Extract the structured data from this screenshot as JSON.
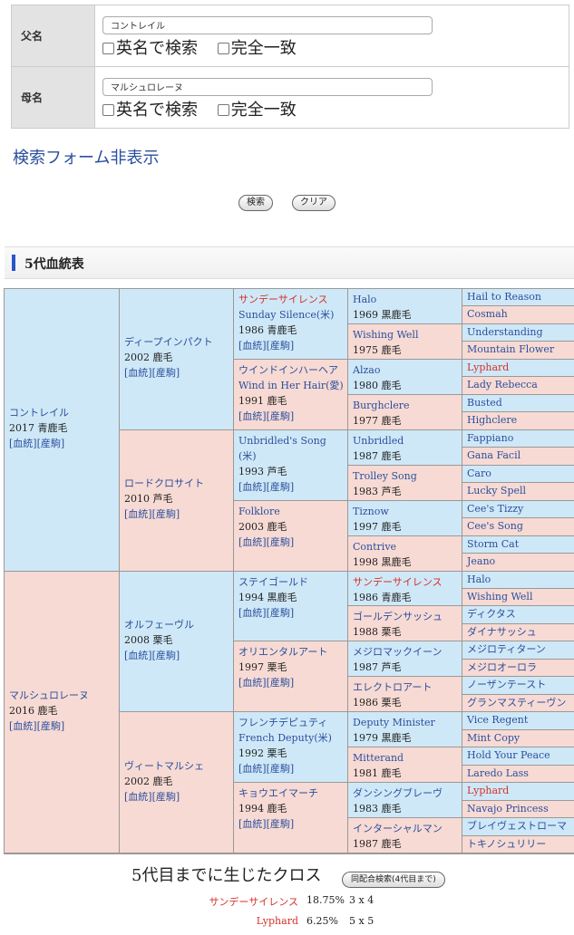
{
  "form": {
    "sire_label": "父名",
    "sire_value": "コントレイル",
    "dam_label": "母名",
    "dam_value": "マルシュロレーヌ",
    "opt_english": "英名で検索",
    "opt_exact": "完全一致",
    "toggle_link": "検索フォーム非表示",
    "search_button": "検索",
    "clear_button": "クリア"
  },
  "section_title": "5代血統表",
  "links": {
    "pedigree": "[血統]",
    "foals": "[産駒]"
  },
  "pedigree": {
    "g1": [
      {
        "name": "コントレイル",
        "info": "2017 青鹿毛"
      },
      {
        "name": "マルシュロレーヌ",
        "info": "2016 鹿毛"
      }
    ],
    "g2": [
      {
        "name": "ディープインパクト",
        "info": "2002 鹿毛"
      },
      {
        "name": "ロードクロサイト",
        "info": "2010 芦毛"
      },
      {
        "name": "オルフェーヴル",
        "info": "2008 栗毛"
      },
      {
        "name": "ヴィートマルシェ",
        "info": "2002 鹿毛"
      }
    ],
    "g3": [
      {
        "name": "サンデーサイレンス",
        "name2": "Sunday Silence(米)",
        "info": "1986 青鹿毛"
      },
      {
        "name": "ウインドインハーヘア",
        "name2": "Wind in Her Hair(愛)",
        "info": "1991 鹿毛"
      },
      {
        "name": "Unbridled's Song",
        "name2": "(米)",
        "info": "1993 芦毛"
      },
      {
        "name": "Folklore",
        "name2": "",
        "info": "2003 鹿毛"
      },
      {
        "name": "ステイゴールド",
        "name2": "",
        "info": "1994 黒鹿毛"
      },
      {
        "name": "オリエンタルアート",
        "name2": "",
        "info": "1997 栗毛"
      },
      {
        "name": "フレンチデピュティ",
        "name2": "French Deputy(米)",
        "info": "1992 栗毛"
      },
      {
        "name": "キョウエイマーチ",
        "name2": "",
        "info": "1994 鹿毛"
      }
    ],
    "g4": [
      {
        "name": "Halo",
        "info": "1969 黒鹿毛"
      },
      {
        "name": "Wishing Well",
        "info": "1975 鹿毛"
      },
      {
        "name": "Alzao",
        "info": "1980 鹿毛"
      },
      {
        "name": "Burghclere",
        "info": "1977 鹿毛"
      },
      {
        "name": "Unbridled",
        "info": "1987 鹿毛"
      },
      {
        "name": "Trolley Song",
        "info": "1983 芦毛"
      },
      {
        "name": "Tiznow",
        "info": "1997 鹿毛"
      },
      {
        "name": "Contrive",
        "info": "1998 黒鹿毛"
      },
      {
        "name": "サンデーサイレンス",
        "info": "1986 青鹿毛"
      },
      {
        "name": "ゴールデンサッシュ",
        "info": "1988 栗毛"
      },
      {
        "name": "メジロマックイーン",
        "info": "1987 芦毛"
      },
      {
        "name": "エレクトロアート",
        "info": "1986 栗毛"
      },
      {
        "name": "Deputy Minister",
        "info": "1979 黒鹿毛"
      },
      {
        "name": "Mitterand",
        "info": "1981 鹿毛"
      },
      {
        "name": "ダンシングブレーヴ",
        "info": "1983 鹿毛"
      },
      {
        "name": "インターシャルマン",
        "info": "1987 鹿毛"
      }
    ],
    "g5": [
      "Hail to Reason",
      "Cosmah",
      "Understanding",
      "Mountain Flower",
      "Lyphard",
      "Lady Rebecca",
      "Busted",
      "Highclere",
      "Fappiano",
      "Gana Facil",
      "Caro",
      "Lucky Spell",
      "Cee's Tizzy",
      "Cee's Song",
      "Storm Cat",
      "Jeano",
      "Halo",
      "Wishing Well",
      "ディクタス",
      "ダイナサッシュ",
      "メジロティターン",
      "メジロオーロラ",
      "ノーザンテースト",
      "グランマスティーヴンス",
      "Vice Regent",
      "Mint Copy",
      "Hold Your Peace",
      "Laredo Lass",
      "Lyphard",
      "Navajo Princess",
      "ブレイヴェストローマン",
      "トキノシュリリー"
    ]
  },
  "cross": {
    "title": "5代目までに生じたクロス",
    "button": "同配合検索(4代目まで)",
    "rows": [
      {
        "name": "サンデーサイレンス",
        "percent": "18.75%",
        "gens": "3 x 4"
      },
      {
        "name": "Lyphard",
        "percent": "6.25%",
        "gens": "5 x 5"
      }
    ]
  },
  "colors": {
    "male_bg": "#cfe8f7",
    "female_bg": "#f7dad3",
    "link": "#2a4f9e",
    "highlight": "#d3322a",
    "accent": "#2a56c6"
  }
}
